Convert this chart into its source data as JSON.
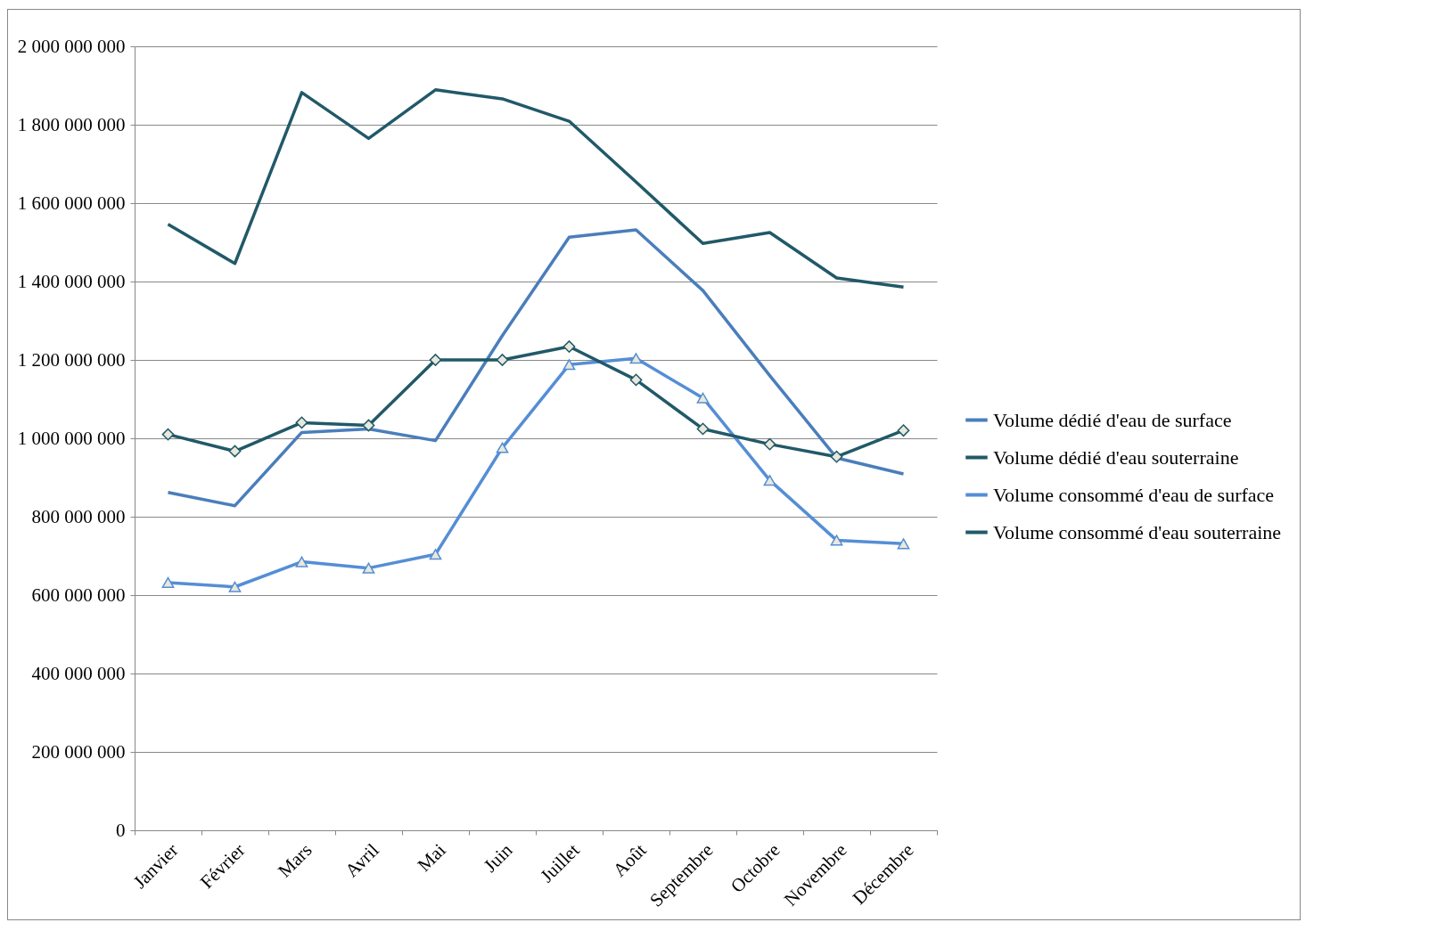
{
  "chart_data": {
    "type": "line",
    "categories": [
      "Janvier",
      "Février",
      "Mars",
      "Avril",
      "Mai",
      "Juin",
      "Juillet",
      "Août",
      "Septembre",
      "Octobre",
      "Novembre",
      "Décembre"
    ],
    "series": [
      {
        "name": "Volume dédié d'eau de surface",
        "color": "#4a7ebb",
        "marker": "none",
        "values": [
          862000000,
          828000000,
          1015000000,
          1024000000,
          994000000,
          1262000000,
          1513000000,
          1532000000,
          1377000000,
          1160000000,
          950000000,
          909000000
        ]
      },
      {
        "name": "Volume dédié d'eau souterraine",
        "color": "#215968",
        "marker": "none",
        "values": [
          1546000000,
          1446000000,
          1882000000,
          1765000000,
          1889000000,
          1866000000,
          1809000000,
          1654000000,
          1497000000,
          1525000000,
          1409000000,
          1386000000
        ]
      },
      {
        "name": "Volume consommé d'eau de surface",
        "color": "#558ed5",
        "marker": "triangle",
        "values": [
          632000000,
          621000000,
          685000000,
          669000000,
          704000000,
          976000000,
          1188000000,
          1204000000,
          1103000000,
          893000000,
          740000000,
          731000000
        ]
      },
      {
        "name": "Volume consommé d'eau souterraine",
        "color": "#215968",
        "marker": "diamond",
        "values": [
          1010000000,
          967000000,
          1040000000,
          1033000000,
          1200000000,
          1200000000,
          1234000000,
          1149000000,
          1024000000,
          985000000,
          953000000,
          1020000000
        ]
      }
    ],
    "ylim": [
      0,
      2000000000
    ],
    "yticks": [
      {
        "value": 0,
        "label": "0"
      },
      {
        "value": 200000000,
        "label": "200 000 000"
      },
      {
        "value": 400000000,
        "label": "400 000 000"
      },
      {
        "value": 600000000,
        "label": "600 000 000"
      },
      {
        "value": 800000000,
        "label": "800 000 000"
      },
      {
        "value": 1000000000,
        "label": "1 000 000 000"
      },
      {
        "value": 1200000000,
        "label": "1 200 000 000"
      },
      {
        "value": 1400000000,
        "label": "1 400 000 000"
      },
      {
        "value": 1600000000,
        "label": "1 600 000 000"
      },
      {
        "value": 1800000000,
        "label": "1 800 000 000"
      },
      {
        "value": 2000000000,
        "label": "2 000 000 000"
      }
    ],
    "grid": "y",
    "legend": "right",
    "line_style": "solid"
  }
}
